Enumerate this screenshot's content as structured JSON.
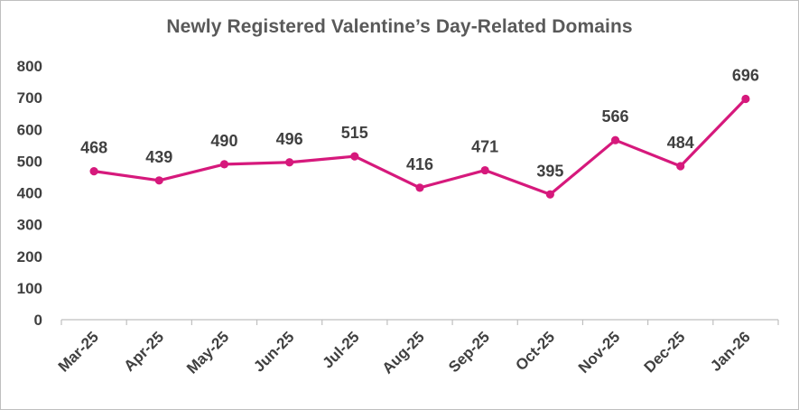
{
  "chart_data": {
    "type": "line",
    "title": "Newly Registered Valentine’s Day-Related Domains",
    "xlabel": "",
    "ylabel": "",
    "categories": [
      "Mar-25",
      "Apr-25",
      "May-25",
      "Jun-25",
      "Jul-25",
      "Aug-25",
      "Sep-25",
      "Oct-25",
      "Nov-25",
      "Dec-25",
      "Jan-26"
    ],
    "series": [
      {
        "values": [
          468,
          439,
          490,
          496,
          515,
          416,
          471,
          395,
          566,
          484,
          696
        ],
        "color": "#d6197c"
      }
    ],
    "ylim": [
      0,
      800
    ],
    "yticks": [
      "0",
      "100",
      "200",
      "300",
      "400",
      "500",
      "600",
      "700",
      "800"
    ],
    "data_labels": [
      "468",
      "439",
      "490",
      "496",
      "515",
      "416",
      "471",
      "395",
      "566",
      "484",
      "696"
    ],
    "grid": false,
    "legend": "none",
    "colors": {
      "line": "#d6197c",
      "axis": "#bfbfbf",
      "text": "#404040",
      "title": "#595959"
    }
  }
}
